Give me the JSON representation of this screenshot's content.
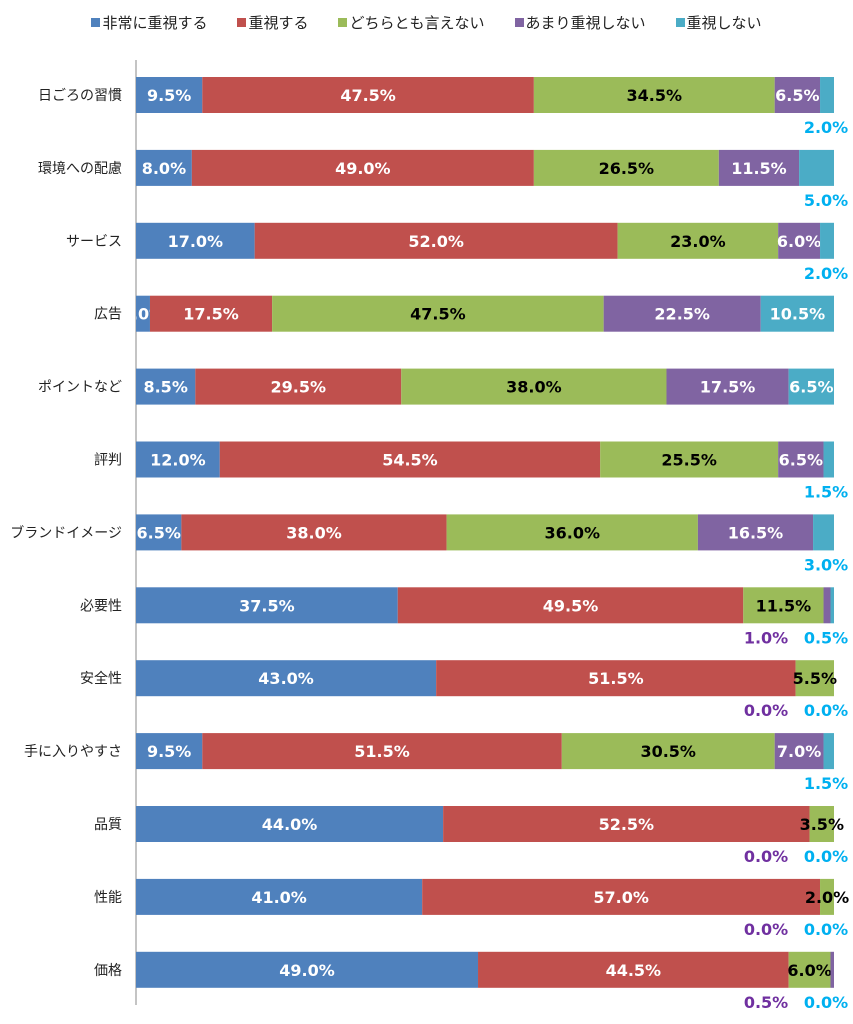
{
  "chart_data": {
    "type": "bar",
    "orientation": "horizontal",
    "stacked": true,
    "xlim": [
      0,
      100
    ],
    "unit": "%",
    "grid": false,
    "legend_placement": "top",
    "categories": [
      "日ごろの習慣",
      "環境への配慮",
      "サービス",
      "広告",
      "ポイントなど",
      "評判",
      "ブランドイメージ",
      "必要性",
      "安全性",
      "手に入りやすさ",
      "品質",
      "性能",
      "価格"
    ],
    "series": [
      {
        "name": "非常に重視する",
        "color": "#4f81bd",
        "values": [
          9.5,
          8.0,
          17.0,
          2.0,
          8.5,
          12.0,
          6.5,
          37.5,
          43.0,
          9.5,
          44.0,
          41.0,
          49.0
        ]
      },
      {
        "name": "重視する",
        "color": "#c0504d",
        "values": [
          47.5,
          49.0,
          52.0,
          17.5,
          29.5,
          54.5,
          38.0,
          49.5,
          51.5,
          51.5,
          52.5,
          57.0,
          44.5
        ]
      },
      {
        "name": "どちらとも言えない",
        "color": "#9bbb59",
        "values": [
          34.5,
          26.5,
          23.0,
          47.5,
          38.0,
          25.5,
          36.0,
          11.5,
          5.5,
          30.5,
          3.5,
          2.0,
          6.0
        ]
      },
      {
        "name": "あまり重視しない",
        "color": "#8064a2",
        "values": [
          6.5,
          11.5,
          6.0,
          22.5,
          17.5,
          6.5,
          16.5,
          1.0,
          0.0,
          7.0,
          0.0,
          0.0,
          0.5
        ]
      },
      {
        "name": "重視しない",
        "color": "#4bacc6",
        "values": [
          2.0,
          5.0,
          2.0,
          10.5,
          6.5,
          1.5,
          3.0,
          0.5,
          0.0,
          1.5,
          0.0,
          0.0,
          0.0
        ]
      }
    ]
  }
}
